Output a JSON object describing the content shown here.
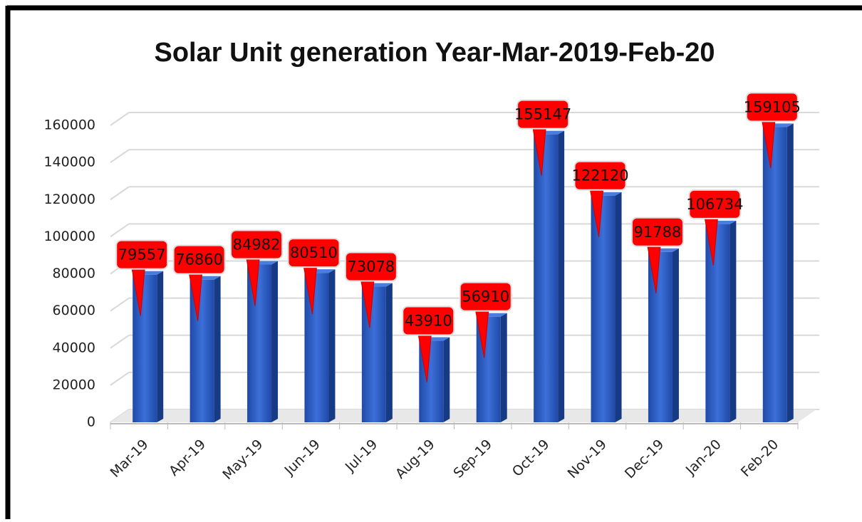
{
  "chart_data": {
    "type": "bar",
    "title": "Solar Unit generation Year-Mar-2019-Feb-20",
    "categories": [
      "Mar-19",
      "Apr-19",
      "May-19",
      "Jun-19",
      "Jul-19",
      "Aug-19",
      "Sep-19",
      "Oct-19",
      "Nov-19",
      "Dec-19",
      "Jan-20",
      "Feb-20"
    ],
    "values": [
      79557,
      76860,
      84982,
      80510,
      73078,
      43910,
      56910,
      155147,
      122120,
      91788,
      106734,
      159105
    ],
    "color": "#2f5fc4",
    "label_color": "#ff0000",
    "ylim": [
      0,
      160000
    ],
    "yticks": [
      0,
      20000,
      40000,
      60000,
      80000,
      100000,
      120000,
      140000,
      160000
    ],
    "grid": true
  }
}
